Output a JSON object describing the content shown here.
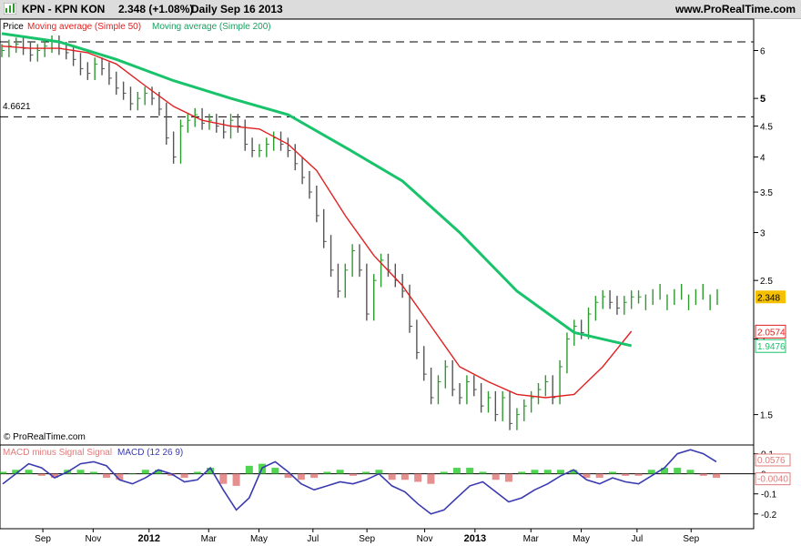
{
  "header": {
    "symbol": "KPN - KPN KON",
    "quote": "2.348 (+1.08%)",
    "period_date": "Daily  Sep 16 2013",
    "site": "www.ProRealTime.com"
  },
  "colors": {
    "price_up": "#2e9a2e",
    "price_down": "#555555",
    "ma50": "#e02020",
    "ma200": "#19c36b",
    "macd": "#3a3ab0",
    "hist_pos": "#33cc33",
    "hist_neg": "#e07b7b",
    "price_badge": "#f5c000"
  },
  "chart_data": [
    {
      "type": "line",
      "name": "price-panel",
      "ylim": [
        1.35,
        6.6
      ],
      "y_scale": "log",
      "yticks": [
        "1.5",
        "2",
        "2.5",
        "3",
        "3.5",
        "4",
        "4.5",
        "5",
        "6"
      ],
      "legend": [
        "Price",
        "Moving average (Simple 50)",
        "Moving average (Simple 200)"
      ],
      "hlines": [
        {
          "value": 6.2,
          "label": ""
        },
        {
          "value": 4.6621,
          "label": "4.6621"
        }
      ],
      "markers": [
        {
          "label": "2.348",
          "value": 2.348,
          "color": "#f5c000"
        },
        {
          "label": "2.0574",
          "value": 2.0574,
          "color": "#e02020"
        },
        {
          "label": "1.9476",
          "value": 1.9476,
          "color": "#19c36b"
        }
      ],
      "series": [
        {
          "name": "Price",
          "x": [
            0,
            1,
            2,
            3,
            4,
            5,
            6,
            7,
            8,
            9,
            10,
            11,
            12,
            13,
            14,
            15,
            16,
            17,
            18,
            19,
            20,
            21,
            22,
            23,
            24,
            25,
            26,
            27,
            28,
            29,
            30,
            31,
            32,
            33,
            34,
            35,
            36,
            37,
            38,
            39,
            40,
            41,
            42,
            43,
            44,
            45,
            46,
            47,
            48,
            49,
            50,
            51,
            52,
            53,
            54,
            55,
            56,
            57,
            58,
            59,
            60,
            61,
            62,
            63,
            64,
            65,
            66,
            67,
            68,
            69,
            70,
            71,
            72,
            73,
            74,
            75,
            76,
            77,
            78,
            79,
            80,
            81,
            82,
            83,
            84,
            85,
            86,
            87,
            88,
            89,
            90,
            91,
            92,
            93,
            94,
            95,
            96,
            97,
            98,
            99,
            100
          ],
          "values": [
            6.0,
            6.1,
            6.15,
            6.05,
            5.9,
            6.0,
            6.1,
            6.2,
            6.05,
            5.95,
            5.8,
            5.6,
            5.5,
            5.7,
            5.6,
            5.4,
            5.2,
            5.1,
            4.9,
            5.0,
            5.1,
            5.0,
            4.8,
            4.3,
            4.0,
            4.5,
            4.6,
            4.7,
            4.55,
            4.6,
            4.5,
            4.4,
            4.6,
            4.5,
            4.2,
            4.1,
            4.1,
            4.2,
            4.3,
            4.2,
            4.1,
            3.9,
            3.7,
            3.5,
            3.2,
            2.9,
            2.6,
            2.4,
            2.6,
            2.8,
            2.6,
            2.2,
            2.5,
            2.7,
            2.6,
            2.5,
            2.4,
            2.1,
            1.9,
            1.75,
            1.6,
            1.7,
            1.8,
            1.65,
            1.6,
            1.7,
            1.65,
            1.55,
            1.6,
            1.5,
            1.6,
            1.45,
            1.5,
            1.55,
            1.6,
            1.65,
            1.7,
            1.6,
            1.8,
            2.0,
            2.1,
            2.05,
            2.2,
            2.3,
            2.35,
            2.3,
            2.25,
            2.3,
            2.348,
            2.348,
            2.348,
            2.348,
            2.348,
            2.348,
            2.348,
            2.348,
            2.348,
            2.348,
            2.348,
            2.348,
            2.348
          ]
        },
        {
          "name": "Moving average (Simple 50)",
          "x": [
            0,
            4,
            8,
            12,
            16,
            20,
            24,
            28,
            32,
            36,
            40,
            44,
            48,
            52,
            56,
            60,
            64,
            68,
            72,
            76,
            80,
            84,
            88
          ],
          "values": [
            6.1,
            6.05,
            6.05,
            5.95,
            5.7,
            5.25,
            4.85,
            4.6,
            4.5,
            4.45,
            4.2,
            3.8,
            3.2,
            2.75,
            2.45,
            2.1,
            1.8,
            1.7,
            1.62,
            1.6,
            1.62,
            1.8,
            2.06
          ]
        },
        {
          "name": "Moving average (Simple 200)",
          "x": [
            0,
            8,
            16,
            24,
            32,
            40,
            48,
            56,
            64,
            72,
            80,
            88
          ],
          "values": [
            6.4,
            6.2,
            5.8,
            5.35,
            5.0,
            4.7,
            4.15,
            3.65,
            3.0,
            2.4,
            2.05,
            1.95
          ]
        }
      ]
    },
    {
      "type": "bar",
      "name": "macd-panel",
      "ylim": [
        -0.26,
        0.13
      ],
      "yticks": [
        "0.1",
        "0",
        "-0.1",
        "-0.2"
      ],
      "legend": [
        "MACD minus Signal Signal",
        "MACD (12 26 9)"
      ],
      "markers": [
        {
          "label": "0.0576",
          "value": 0.0576,
          "color": "#e07b7b"
        },
        {
          "label": "-0.0040",
          "value": -0.004,
          "color": "#e07b7b"
        }
      ],
      "series": [
        {
          "name": "MACD",
          "values": [
            -0.05,
            0.0,
            0.05,
            0.03,
            -0.02,
            0.01,
            0.05,
            0.06,
            0.04,
            -0.03,
            -0.05,
            -0.02,
            0.02,
            0.0,
            -0.04,
            -0.03,
            0.03,
            -0.08,
            -0.18,
            -0.12,
            0.03,
            0.06,
            0.01,
            -0.05,
            -0.08,
            -0.06,
            -0.04,
            -0.05,
            -0.03,
            0.0,
            -0.06,
            -0.09,
            -0.15,
            -0.2,
            -0.18,
            -0.12,
            -0.06,
            -0.04,
            -0.09,
            -0.14,
            -0.12,
            -0.08,
            -0.05,
            -0.01,
            0.02,
            -0.03,
            -0.05,
            -0.02,
            -0.04,
            -0.05,
            -0.01,
            0.03,
            0.1,
            0.12,
            0.1,
            0.06
          ]
        },
        {
          "name": "MACD minus Signal Signal",
          "values": [
            0.01,
            0.02,
            0.02,
            -0.01,
            -0.02,
            0.02,
            0.02,
            0.01,
            -0.02,
            -0.03,
            0.0,
            0.02,
            0.02,
            -0.01,
            -0.02,
            0.01,
            0.03,
            -0.05,
            -0.06,
            0.04,
            0.05,
            0.03,
            -0.02,
            -0.03,
            -0.02,
            0.01,
            0.02,
            -0.01,
            0.01,
            0.02,
            -0.03,
            -0.03,
            -0.04,
            -0.05,
            0.01,
            0.03,
            0.03,
            0.01,
            -0.03,
            -0.04,
            0.01,
            0.02,
            0.02,
            0.02,
            0.02,
            -0.02,
            -0.02,
            0.01,
            -0.01,
            -0.01,
            0.02,
            0.03,
            0.03,
            0.02,
            -0.01,
            -0.02
          ]
        }
      ]
    }
  ],
  "xaxis": {
    "labels": [
      {
        "text": "Sep",
        "bold": false,
        "pos": 0.0535
      },
      {
        "text": "Nov",
        "bold": false,
        "pos": 0.1163
      },
      {
        "text": "2012",
        "bold": true,
        "pos": 0.1861
      },
      {
        "text": "Mar",
        "bold": false,
        "pos": 0.2605
      },
      {
        "text": "May",
        "bold": false,
        "pos": 0.3233
      },
      {
        "text": "Jul",
        "bold": false,
        "pos": 0.3907
      },
      {
        "text": "Sep",
        "bold": false,
        "pos": 0.4581
      },
      {
        "text": "Nov",
        "bold": false,
        "pos": 0.5302
      },
      {
        "text": "2013",
        "bold": true,
        "pos": 0.593
      },
      {
        "text": "Mar",
        "bold": false,
        "pos": 0.6628
      },
      {
        "text": "May",
        "bold": false,
        "pos": 0.7256
      },
      {
        "text": "Jul",
        "bold": false,
        "pos": 0.7953
      },
      {
        "text": "Sep",
        "bold": false,
        "pos": 0.8628
      }
    ]
  },
  "watermark": "© ProRealTime.com"
}
